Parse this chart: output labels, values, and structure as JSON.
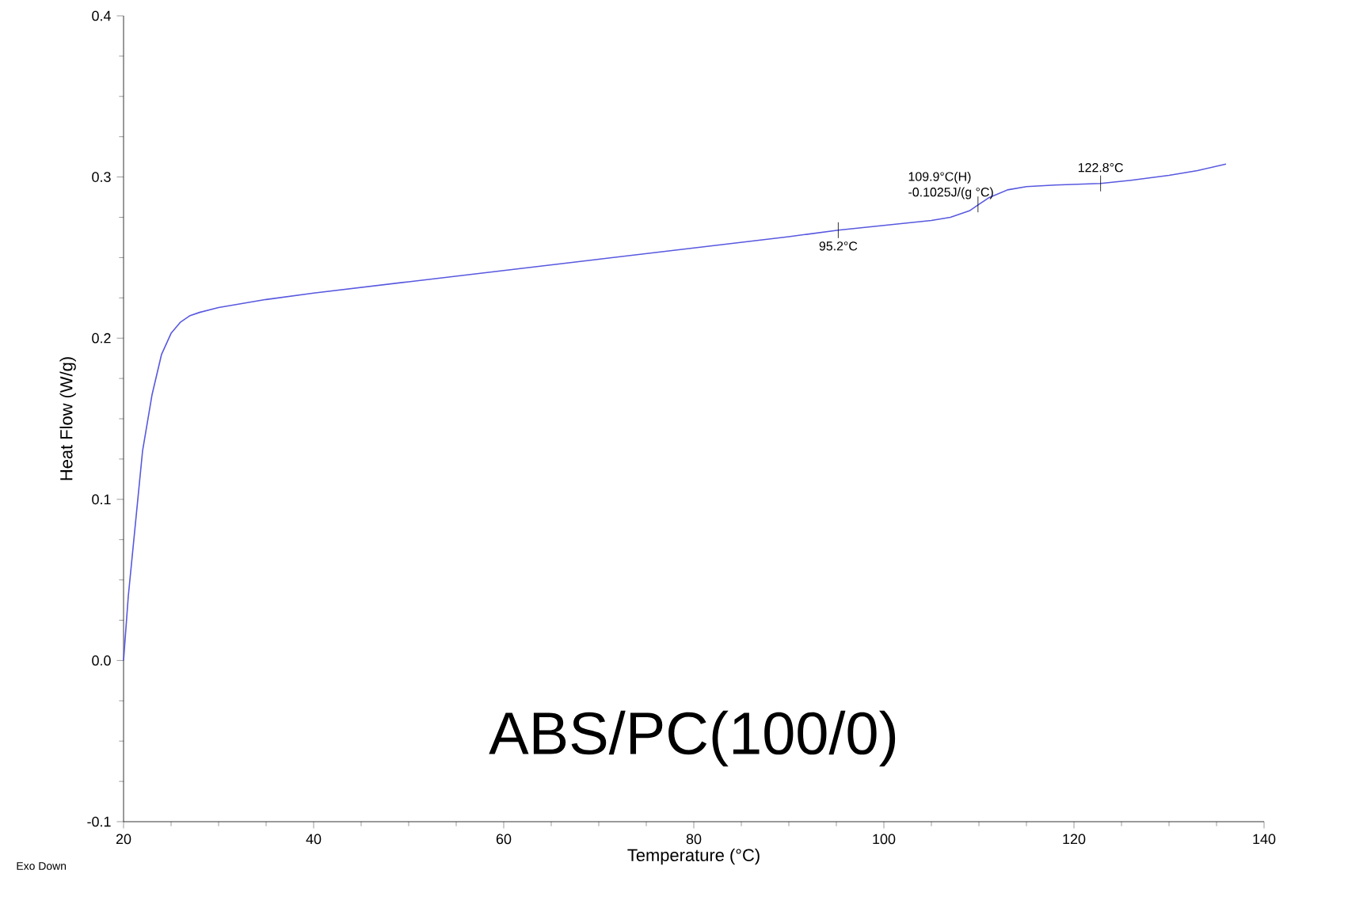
{
  "chart_data": {
    "type": "line",
    "title": "ABS/PC(100/0)",
    "xlabel": "Temperature (°C)",
    "ylabel": "Heat Flow (W/g)",
    "xlim": [
      20,
      140
    ],
    "ylim": [
      -0.1,
      0.4
    ],
    "xticks": [
      20,
      40,
      60,
      80,
      100,
      120,
      140
    ],
    "yticks": [
      {
        "value": -0.1,
        "label": "-0.1"
      },
      {
        "value": 0,
        "label": "0.0"
      },
      {
        "value": 0.1,
        "label": "0.1"
      },
      {
        "value": 0.2,
        "label": "0.2"
      },
      {
        "value": 0.3,
        "label": "0.3"
      },
      {
        "value": 0.4,
        "label": "0.4"
      }
    ],
    "grid": false,
    "marker": "none",
    "line_style": "solid",
    "series": [
      {
        "color": "#5858e0",
        "x": [
          20,
          20.5,
          21,
          21.5,
          22,
          23,
          24,
          25,
          26,
          27,
          28,
          30,
          35,
          40,
          50,
          60,
          70,
          80,
          90,
          95.2,
          100,
          105,
          107,
          109,
          110,
          111,
          113,
          115,
          118,
          122.8,
          126,
          130,
          133,
          136
        ],
        "values": [
          0.0,
          0.04,
          0.07,
          0.1,
          0.13,
          0.165,
          0.19,
          0.203,
          0.21,
          0.214,
          0.216,
          0.219,
          0.224,
          0.228,
          0.235,
          0.242,
          0.249,
          0.256,
          0.263,
          0.267,
          0.27,
          0.273,
          0.275,
          0.279,
          0.283,
          0.287,
          0.292,
          0.294,
          0.295,
          0.296,
          0.298,
          0.301,
          0.304,
          0.308
        ]
      }
    ],
    "annotations": [
      {
        "text": "95.2°C",
        "x": 95.2,
        "y": 0.267
      },
      {
        "text": "109.9°C(H)",
        "x": 109.9,
        "y": 0.283
      },
      "-0.1025J/(g °C)",
      {
        "text": "122.8°C",
        "x": 122.8,
        "y": 0.296
      },
      "Exo Down"
    ]
  }
}
